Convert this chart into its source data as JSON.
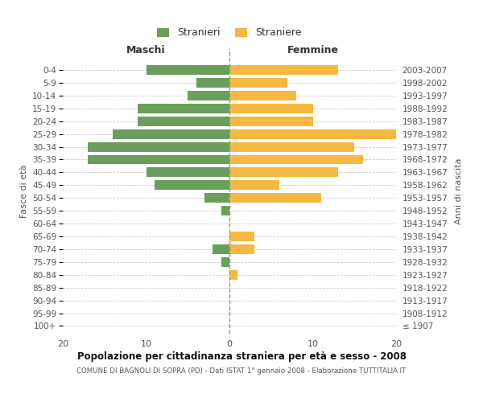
{
  "age_groups": [
    "100+",
    "95-99",
    "90-94",
    "85-89",
    "80-84",
    "75-79",
    "70-74",
    "65-69",
    "60-64",
    "55-59",
    "50-54",
    "45-49",
    "40-44",
    "35-39",
    "30-34",
    "25-29",
    "20-24",
    "15-19",
    "10-14",
    "5-9",
    "0-4"
  ],
  "birth_years": [
    "≤ 1907",
    "1908-1912",
    "1913-1917",
    "1918-1922",
    "1923-1927",
    "1928-1932",
    "1933-1937",
    "1938-1942",
    "1943-1947",
    "1948-1952",
    "1953-1957",
    "1958-1962",
    "1963-1967",
    "1968-1972",
    "1973-1977",
    "1978-1982",
    "1983-1987",
    "1988-1992",
    "1993-1997",
    "1998-2002",
    "2003-2007"
  ],
  "maschi": [
    0,
    0,
    0,
    0,
    0,
    1,
    2,
    0,
    0,
    1,
    3,
    9,
    10,
    17,
    17,
    14,
    11,
    11,
    5,
    4,
    10
  ],
  "femmine": [
    0,
    0,
    0,
    0,
    1,
    0,
    3,
    3,
    0,
    0,
    11,
    6,
    13,
    16,
    15,
    20,
    10,
    10,
    8,
    7,
    13
  ],
  "maschi_color": "#6a9e5b",
  "femmine_color": "#f5b942",
  "bg_color": "#ffffff",
  "grid_color": "#cccccc",
  "title": "Popolazione per cittadinanza straniera per età e sesso - 2008",
  "subtitle": "COMUNE DI BAGNOLI DI SOPRA (PD) - Dati ISTAT 1° gennaio 2008 - Elaborazione TUTTITALIA.IT",
  "ylabel_left": "Fasce di età",
  "ylabel_right": "Anni di nascita",
  "xlabel_maschi": "Maschi",
  "xlabel_femmine": "Femmine",
  "legend_maschi": "Stranieri",
  "legend_femmine": "Straniere",
  "xlim": 20
}
